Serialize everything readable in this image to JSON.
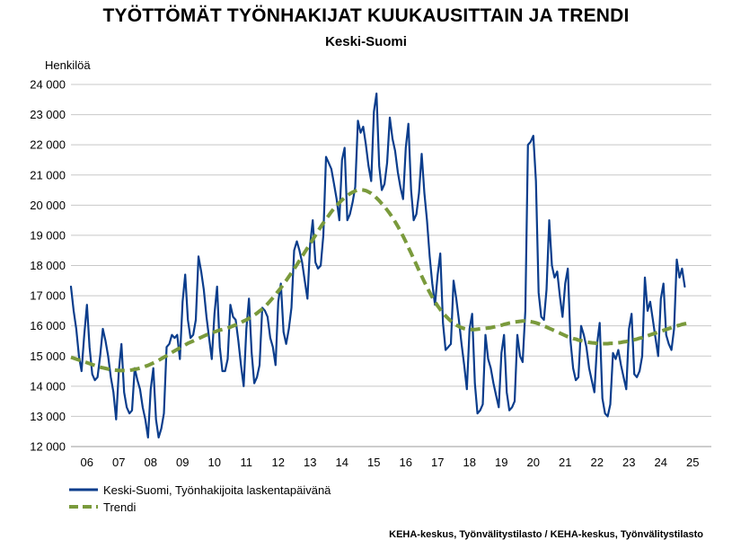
{
  "chart_data": {
    "type": "line",
    "title": "TYÖTTÖMÄT TYÖNHAKIJAT KUUKAUSITTAIN JA TRENDI",
    "subtitle": "Keski-Suomi",
    "ylabel": "Henkilöä",
    "ylim": [
      12000,
      24000
    ],
    "yticks": [
      12000,
      13000,
      14000,
      15000,
      16000,
      17000,
      18000,
      19000,
      20000,
      21000,
      22000,
      23000,
      24000
    ],
    "ytick_labels": [
      "12 000",
      "13 000",
      "14 000",
      "15 000",
      "16 000",
      "17 000",
      "18 000",
      "19 000",
      "20 000",
      "21 000",
      "22 000",
      "23 000",
      "24 000"
    ],
    "x_categories": [
      "06",
      "07",
      "08",
      "09",
      "10",
      "11",
      "12",
      "13",
      "14",
      "15",
      "16",
      "17",
      "18",
      "19",
      "20",
      "21",
      "22",
      "23",
      "24",
      "25"
    ],
    "x_start_year": 2006,
    "grid": "horizontal",
    "legend_position": "bottom-left",
    "series": [
      {
        "name": "Keski-Suomi, Työnhakijoita laskentapäivänä",
        "color": "#0b3d8c",
        "style": "solid",
        "annual": [
          [
            17300,
            16500,
            15900,
            15000,
            14500,
            15700,
            16700,
            15300,
            14400,
            14200,
            14300,
            15000
          ],
          [
            15900,
            15500,
            15000,
            14300,
            13800,
            12900,
            14500,
            15400,
            13800,
            13300,
            13100,
            13200
          ],
          [
            14600,
            14200,
            13900,
            13300,
            12900,
            12300,
            13900,
            14600,
            12900,
            12300,
            12600,
            13100
          ],
          [
            15300,
            15400,
            15700,
            15600,
            15700,
            14900,
            16800,
            17700,
            16200,
            15600,
            15700,
            16200
          ],
          [
            18300,
            17800,
            17200,
            16300,
            15600,
            14900,
            16400,
            17300,
            15300,
            14500,
            14500,
            14900
          ],
          [
            16700,
            16300,
            16200,
            15500,
            14700,
            14000,
            15900,
            16900,
            15100,
            14100,
            14300,
            14700
          ],
          [
            16600,
            16500,
            16300,
            15600,
            15300,
            14700,
            16800,
            17400,
            15800,
            15400,
            15900,
            16600
          ],
          [
            18500,
            18800,
            18500,
            18100,
            17500,
            16900,
            18700,
            19500,
            18100,
            17900,
            18000,
            19000
          ],
          [
            21600,
            21400,
            21200,
            20700,
            20200,
            19500,
            21500,
            21900,
            19500,
            19700,
            20100,
            20600
          ],
          [
            22800,
            22400,
            22600,
            22000,
            21300,
            20800,
            23100,
            23700,
            21300,
            20500,
            20700,
            21400
          ],
          [
            22900,
            22200,
            21800,
            21100,
            20600,
            20200,
            21900,
            22700,
            20500,
            19500,
            19700,
            20400
          ],
          [
            21700,
            20400,
            19500,
            18300,
            17400,
            16700,
            17700,
            18400,
            16100,
            15200,
            15300,
            15400
          ],
          [
            17500,
            16900,
            16200,
            15400,
            14700,
            13900,
            15900,
            16400,
            14100,
            13100,
            13200,
            13400
          ],
          [
            15700,
            14900,
            14600,
            14100,
            13700,
            13300,
            15100,
            15700,
            13800,
            13200,
            13300,
            13500
          ],
          [
            15700,
            15000,
            14800,
            16500,
            22000,
            22100,
            22300,
            20800,
            17100,
            16300,
            16200,
            17200
          ],
          [
            19500,
            18000,
            17600,
            17800,
            17000,
            16300,
            17400,
            17900,
            15500,
            14600,
            14200,
            14300
          ],
          [
            16000,
            15700,
            15300,
            14600,
            14200,
            13800,
            15400,
            16100,
            13600,
            13100,
            13000,
            13400
          ],
          [
            15100,
            14900,
            15200,
            14700,
            14300,
            13900,
            15900,
            16400,
            14400,
            14300,
            14500,
            15000
          ],
          [
            17600,
            16500,
            16800,
            16200,
            15600,
            15000,
            16900,
            17400,
            15700,
            15400,
            15200,
            15900
          ],
          [
            18200,
            17600,
            17900,
            17300
          ]
        ]
      },
      {
        "name": "Trendi",
        "color": "#7a9a3c",
        "style": "dashed",
        "annual": [
          [
            14960,
            14930,
            14900,
            14870,
            14840,
            14810,
            14780,
            14750,
            14720,
            14690,
            14660,
            14630
          ],
          [
            14610,
            14590,
            14570,
            14550,
            14540,
            14530,
            14520,
            14520,
            14520,
            14520,
            14530,
            14540
          ],
          [
            14560,
            14580,
            14600,
            14630,
            14660,
            14690,
            14730,
            14770,
            14810,
            14860,
            14910,
            14960
          ],
          [
            15010,
            15070,
            15120,
            15170,
            15220,
            15270,
            15320,
            15370,
            15420,
            15460,
            15500,
            15540
          ],
          [
            15580,
            15620,
            15660,
            15700,
            15740,
            15780,
            15800,
            15830,
            15860,
            15880,
            15900,
            15930
          ],
          [
            15960,
            16000,
            16030,
            16070,
            16110,
            16160,
            16200,
            16250,
            16300,
            16360,
            16420,
            16490
          ],
          [
            16560,
            16640,
            16730,
            16830,
            16930,
            17040,
            17150,
            17260,
            17380,
            17500,
            17630,
            17760
          ],
          [
            17890,
            18020,
            18160,
            18300,
            18440,
            18580,
            18720,
            18860,
            19000,
            19140,
            19280,
            19410
          ],
          [
            19540,
            19660,
            19780,
            19890,
            19990,
            20080,
            20170,
            20250,
            20320,
            20380,
            20430,
            20470
          ],
          [
            20500,
            20510,
            20500,
            20480,
            20440,
            20390,
            20320,
            20240,
            20150,
            20050,
            19950,
            19840
          ],
          [
            19720,
            19590,
            19450,
            19300,
            19140,
            18970,
            18790,
            18600,
            18410,
            18220,
            18030,
            17840
          ],
          [
            17650,
            17460,
            17280,
            17110,
            16950,
            16800,
            16660,
            16540,
            16430,
            16330,
            16240,
            16160
          ],
          [
            16090,
            16030,
            15980,
            15940,
            15910,
            15890,
            15880,
            15880,
            15880,
            15890,
            15900,
            15910
          ],
          [
            15920,
            15930,
            15940,
            15960,
            15980,
            16000,
            16020,
            16050,
            16070,
            16090,
            16110,
            16130
          ],
          [
            16140,
            16150,
            16160,
            16160,
            16150,
            16140,
            16120,
            16100,
            16070,
            16040,
            16000,
            15960
          ],
          [
            15920,
            15880,
            15840,
            15800,
            15760,
            15720,
            15680,
            15640,
            15610,
            15580,
            15560,
            15530
          ],
          [
            15510,
            15490,
            15470,
            15450,
            15440,
            15430,
            15420,
            15410,
            15410,
            15410,
            15410,
            15420
          ],
          [
            15420,
            15430,
            15440,
            15450,
            15470,
            15480,
            15500,
            15520,
            15540,
            15560,
            15590,
            15610
          ],
          [
            15640,
            15670,
            15700,
            15730,
            15760,
            15790,
            15820,
            15850,
            15880,
            15910,
            15940,
            15970
          ],
          [
            16000,
            16020,
            16050,
            16070,
            16090
          ]
        ]
      }
    ],
    "source": "KEHA-keskus, Työnvälitystilasto / KEHA-keskus, Työnvälitystilasto"
  }
}
